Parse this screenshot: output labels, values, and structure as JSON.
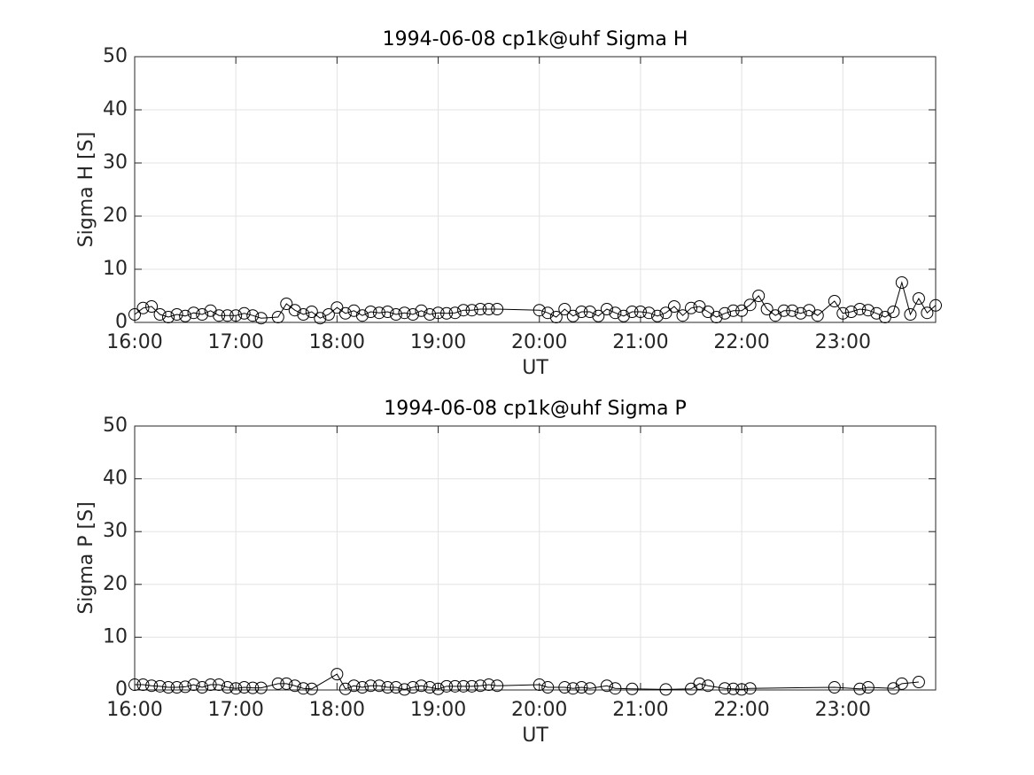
{
  "chart_data": [
    {
      "type": "line",
      "title": "1994-06-08  cp1k@uhf Sigma H",
      "x_label": "UT",
      "y_label": "Sigma H [S]",
      "xlim": [
        16,
        23.917
      ],
      "ylim": [
        0,
        50
      ],
      "yticks": [
        0,
        10,
        20,
        30,
        40,
        50
      ],
      "xticks": [
        {
          "value": 16,
          "label": "16:00"
        },
        {
          "value": 17,
          "label": "17:00"
        },
        {
          "value": 18,
          "label": "18:00"
        },
        {
          "value": 19,
          "label": "19:00"
        },
        {
          "value": 20,
          "label": "20:00"
        },
        {
          "value": 21,
          "label": "21:00"
        },
        {
          "value": 22,
          "label": "22:00"
        },
        {
          "value": 23,
          "label": "23:00"
        }
      ],
      "grid": true,
      "marker": "circle",
      "x": [
        16,
        16.083,
        16.167,
        16.25,
        16.333,
        16.417,
        16.5,
        16.583,
        16.667,
        16.75,
        16.833,
        16.917,
        17,
        17.083,
        17.167,
        17.25,
        17.417,
        17.5,
        17.583,
        17.667,
        17.75,
        17.833,
        17.917,
        18,
        18.083,
        18.167,
        18.25,
        18.333,
        18.417,
        18.5,
        18.583,
        18.667,
        18.75,
        18.833,
        18.917,
        19,
        19.083,
        19.167,
        19.25,
        19.333,
        19.417,
        19.5,
        19.583,
        20,
        20.083,
        20.167,
        20.25,
        20.333,
        20.417,
        20.5,
        20.583,
        20.667,
        20.75,
        20.833,
        20.917,
        21,
        21.083,
        21.167,
        21.25,
        21.333,
        21.417,
        21.5,
        21.583,
        21.667,
        21.75,
        21.833,
        21.917,
        22,
        22.083,
        22.167,
        22.25,
        22.333,
        22.417,
        22.5,
        22.583,
        22.667,
        22.75,
        22.917,
        23,
        23.083,
        23.167,
        23.25,
        23.333,
        23.417,
        23.5,
        23.583,
        23.667,
        23.75,
        23.833,
        23.917
      ],
      "series": [
        {
          "color": "#000000",
          "values": [
            1.5,
            2.7,
            3.0,
            1.5,
            1.0,
            1.5,
            1.2,
            1.8,
            1.5,
            2.2,
            1.3,
            1.3,
            1.3,
            1.7,
            1.3,
            0.8,
            1.0,
            3.5,
            2.3,
            1.5,
            2.0,
            0.8,
            1.5,
            2.8,
            1.7,
            2.2,
            1.3,
            2.0,
            1.8,
            2.0,
            1.5,
            1.8,
            1.5,
            2.2,
            1.5,
            1.8,
            1.7,
            1.8,
            2.3,
            2.3,
            2.5,
            2.5,
            2.5,
            2.3,
            1.8,
            1.0,
            2.5,
            1.2,
            2.0,
            2.0,
            1.2,
            2.5,
            1.8,
            1.2,
            2.0,
            2.0,
            1.8,
            1.2,
            1.8,
            3.0,
            1.3,
            2.7,
            3.0,
            2.0,
            1.0,
            1.7,
            2.2,
            2.2,
            3.3,
            5.0,
            2.5,
            1.3,
            2.2,
            2.2,
            1.7,
            2.3,
            1.3,
            4.0,
            1.7,
            2.0,
            2.5,
            2.3,
            1.7,
            1.0,
            2.0,
            7.5,
            1.5,
            4.5,
            1.8,
            3.2
          ]
        }
      ]
    },
    {
      "type": "line",
      "title": "1994-06-08  cp1k@uhf Sigma P",
      "x_label": "UT",
      "y_label": "Sigma P [S]",
      "xlim": [
        16,
        23.917
      ],
      "ylim": [
        0,
        50
      ],
      "yticks": [
        0,
        10,
        20,
        30,
        40,
        50
      ],
      "xticks": [
        {
          "value": 16,
          "label": "16:00"
        },
        {
          "value": 17,
          "label": "17:00"
        },
        {
          "value": 18,
          "label": "18:00"
        },
        {
          "value": 19,
          "label": "19:00"
        },
        {
          "value": 20,
          "label": "20:00"
        },
        {
          "value": 21,
          "label": "21:00"
        },
        {
          "value": 22,
          "label": "22:00"
        },
        {
          "value": 23,
          "label": "23:00"
        }
      ],
      "grid": true,
      "marker": "circle",
      "x": [
        16,
        16.083,
        16.167,
        16.25,
        16.333,
        16.417,
        16.5,
        16.583,
        16.667,
        16.75,
        16.833,
        16.917,
        17,
        17.083,
        17.167,
        17.25,
        17.417,
        17.5,
        17.583,
        17.667,
        17.75,
        18,
        18.083,
        18.167,
        18.25,
        18.333,
        18.417,
        18.5,
        18.583,
        18.667,
        18.75,
        18.833,
        18.917,
        19,
        19.083,
        19.167,
        19.25,
        19.333,
        19.417,
        19.5,
        19.583,
        20,
        20.083,
        20.25,
        20.333,
        20.417,
        20.5,
        20.667,
        20.75,
        20.917,
        21.25,
        21.5,
        21.583,
        21.667,
        21.833,
        21.917,
        22,
        22.083,
        22.917,
        23.167,
        23.25,
        23.5,
        23.583,
        23.75
      ],
      "series": [
        {
          "color": "#000000",
          "values": [
            1.0,
            1.0,
            0.8,
            0.7,
            0.5,
            0.5,
            0.6,
            1.0,
            0.5,
            1.0,
            1.0,
            0.5,
            0.3,
            0.5,
            0.4,
            0.4,
            1.2,
            1.2,
            0.8,
            0.3,
            0.2,
            3.0,
            0.2,
            0.8,
            0.5,
            0.8,
            0.8,
            0.5,
            0.5,
            0.1,
            0.5,
            0.8,
            0.5,
            0.2,
            0.7,
            0.7,
            0.7,
            0.7,
            0.8,
            1.0,
            0.8,
            1.0,
            0.5,
            0.5,
            0.3,
            0.5,
            0.3,
            0.8,
            0.3,
            0.2,
            0.1,
            0.2,
            1.2,
            0.8,
            0.3,
            0.2,
            0.1,
            0.3,
            0.5,
            0.2,
            0.5,
            0.3,
            1.2,
            1.5
          ]
        }
      ]
    }
  ]
}
